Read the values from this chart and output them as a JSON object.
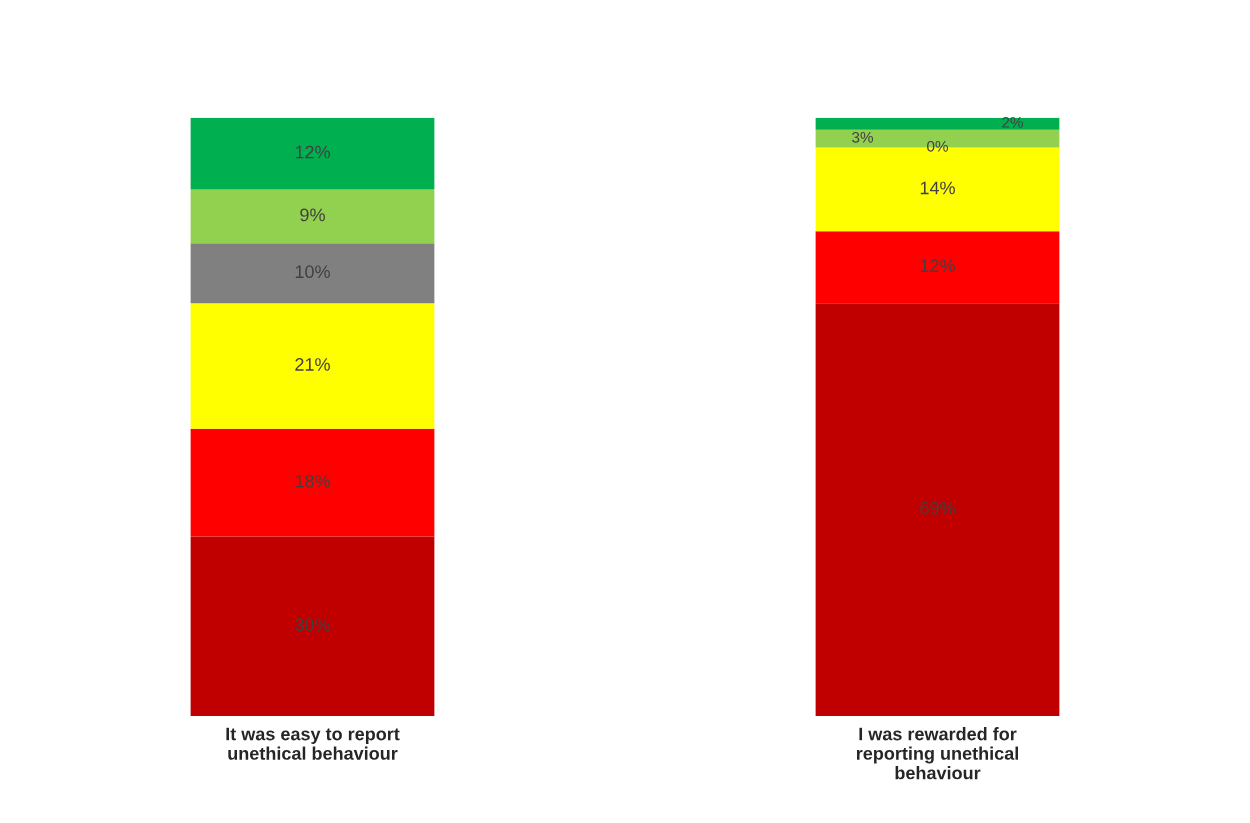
{
  "chart_data": {
    "type": "bar",
    "stacked": true,
    "categories": [
      "It was easy to report unethical behaviour",
      "I was rewarded for reporting unethical behaviour"
    ],
    "series": [
      {
        "color": "#c00000",
        "values": [
          30,
          69
        ],
        "value_labels": [
          "30%",
          "69%"
        ]
      },
      {
        "color": "#ff0000",
        "values": [
          18,
          12
        ],
        "value_labels": [
          "18%",
          "12%"
        ]
      },
      {
        "color": "#ffff00",
        "values": [
          21,
          14
        ],
        "value_labels": [
          "21%",
          "14%"
        ]
      },
      {
        "color": "#808080",
        "values": [
          10,
          0
        ],
        "value_labels": [
          "10%",
          "0%"
        ]
      },
      {
        "color": "#92d050",
        "values": [
          9,
          3
        ],
        "value_labels": [
          "9%",
          "3%"
        ]
      },
      {
        "color": "#00b050",
        "values": [
          12,
          2
        ],
        "value_labels": [
          "12%",
          "2%"
        ]
      }
    ]
  }
}
